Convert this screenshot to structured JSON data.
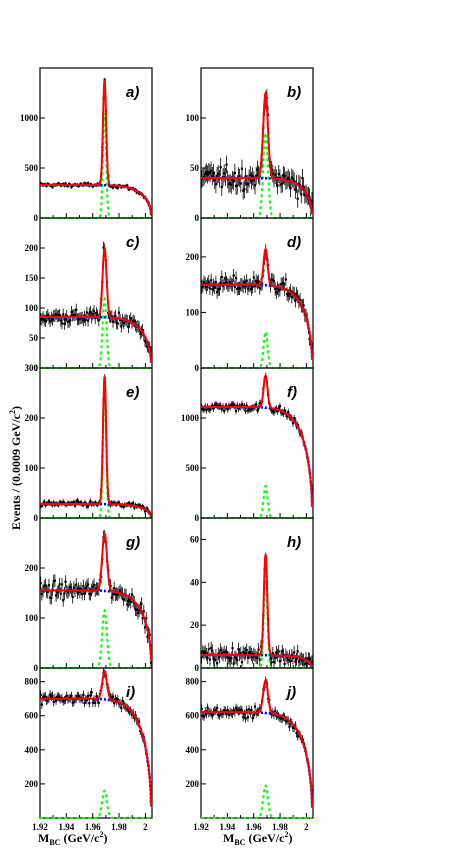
{
  "chart_data": {
    "type": "line",
    "ylabel": "Events / (0.0009 GeV/c²)",
    "xlabel": "M_BC (GeV/c²)",
    "xlabel_main": "M",
    "xlabel_sub": "BC",
    "xlabel_unit_a": " (GeV/c",
    "xlabel_unit_sup": "2",
    "xlabel_unit_b": ")",
    "ylabel_main": "Events / (0.0009 GeV/c",
    "ylabel_sup": "2",
    "ylabel_end": ")",
    "xlim": [
      1.92,
      2.005
    ],
    "xticks": [
      "1.92",
      "1.94",
      "1.96",
      "1.98",
      "2"
    ],
    "series_styles": {
      "data": "#000000",
      "total_fit": "#ff0000",
      "background": "#0000ff",
      "signal": "#00ff00"
    },
    "panels": [
      {
        "label": "a)",
        "ylim": [
          0,
          1500
        ],
        "yticks": [
          0,
          500,
          1000
        ],
        "background_level": 330,
        "signal_peak": 1050,
        "signal_width": 0.0012,
        "noise": 18
      },
      {
        "label": "b)",
        "ylim": [
          0,
          150
        ],
        "yticks": [
          0,
          50,
          100
        ],
        "background_level": 40,
        "signal_peak": 85,
        "signal_width": 0.0018,
        "noise": 9
      },
      {
        "label": "c)",
        "ylim": [
          0,
          250
        ],
        "yticks": [
          0,
          50,
          100,
          150,
          200
        ],
        "background_level": 85,
        "signal_peak": 115,
        "signal_width": 0.0015,
        "noise": 10
      },
      {
        "label": "d)",
        "ylim": [
          0,
          270
        ],
        "yticks": [
          0,
          100,
          200
        ],
        "background_level": 150,
        "signal_peak": 65,
        "signal_width": 0.0015,
        "noise": 12
      },
      {
        "label": "e)",
        "ylim": [
          0,
          300
        ],
        "yticks": [
          0,
          100,
          200,
          300
        ],
        "background_level": 28,
        "signal_peak": 255,
        "signal_width": 0.0012,
        "noise": 5
      },
      {
        "label": "f)",
        "ylim": [
          0,
          1500
        ],
        "yticks": [
          0,
          500,
          1000
        ],
        "background_level": 1110,
        "signal_peak": 320,
        "signal_width": 0.0015,
        "noise": 35
      },
      {
        "label": "g)",
        "ylim": [
          0,
          300
        ],
        "yticks": [
          0,
          100,
          200
        ],
        "background_level": 155,
        "signal_peak": 115,
        "signal_width": 0.0018,
        "noise": 13
      },
      {
        "label": "h)",
        "ylim": [
          0,
          70
        ],
        "yticks": [
          0,
          20,
          40,
          60
        ],
        "background_level": 6,
        "signal_peak": 47,
        "signal_width": 0.0013,
        "noise": 3
      },
      {
        "label": "i)",
        "ylim": [
          0,
          880
        ],
        "yticks": [
          200,
          400,
          600,
          800
        ],
        "background_level": 700,
        "signal_peak": 160,
        "signal_width": 0.0018,
        "noise": 25
      },
      {
        "label": "j)",
        "ylim": [
          0,
          880
        ],
        "yticks": [
          200,
          400,
          600,
          800
        ],
        "background_level": 620,
        "signal_peak": 190,
        "signal_width": 0.0018,
        "noise": 25
      }
    ]
  }
}
